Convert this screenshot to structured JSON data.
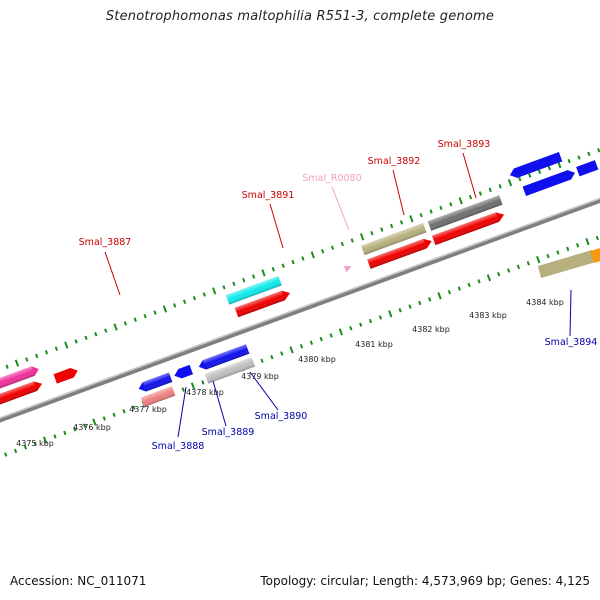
{
  "title": "Stenotrophomonas maltophilia R551-3, complete genome",
  "footer": {
    "accession": "Accession: NC_011071",
    "summary": "Topology: circular; Length: 4,573,969 bp; Genes: 4,125"
  },
  "colors": {
    "backbone": "#808080",
    "tick": "#1e8c1e",
    "red_label": "#cc0000",
    "blue_label": "#0000aa",
    "pink_label": "#f2a0c0"
  },
  "ticks": [
    {
      "label": "4375 kbp"
    },
    {
      "label": "4376 kbp"
    },
    {
      "label": "4377 kbp"
    },
    {
      "label": "4378 kbp"
    },
    {
      "label": "4379 kbp"
    },
    {
      "label": "4380 kbp"
    },
    {
      "label": "4381 kbp"
    },
    {
      "label": "4382 kbp"
    },
    {
      "label": "4383 kbp"
    },
    {
      "label": "4384 kbp"
    }
  ],
  "genes": {
    "smal_3887": {
      "label": "Smal_3887",
      "color": "#cc0000"
    },
    "smal_3888": {
      "label": "Smal_3888",
      "color": "#0000aa"
    },
    "smal_3889": {
      "label": "Smal_3889",
      "color": "#0000aa"
    },
    "smal_3890": {
      "label": "Smal_3890",
      "color": "#0000aa"
    },
    "smal_3891": {
      "label": "Smal_3891",
      "color": "#cc0000"
    },
    "smal_r0080": {
      "label": "Smal_R0080",
      "color": "#f2a0c0"
    },
    "smal_3892": {
      "label": "Smal_3892",
      "color": "#cc0000"
    },
    "smal_3893": {
      "label": "Smal_3893",
      "color": "#cc0000"
    },
    "smal_3894": {
      "label": "Smal_3894",
      "color": "#0000aa"
    }
  }
}
